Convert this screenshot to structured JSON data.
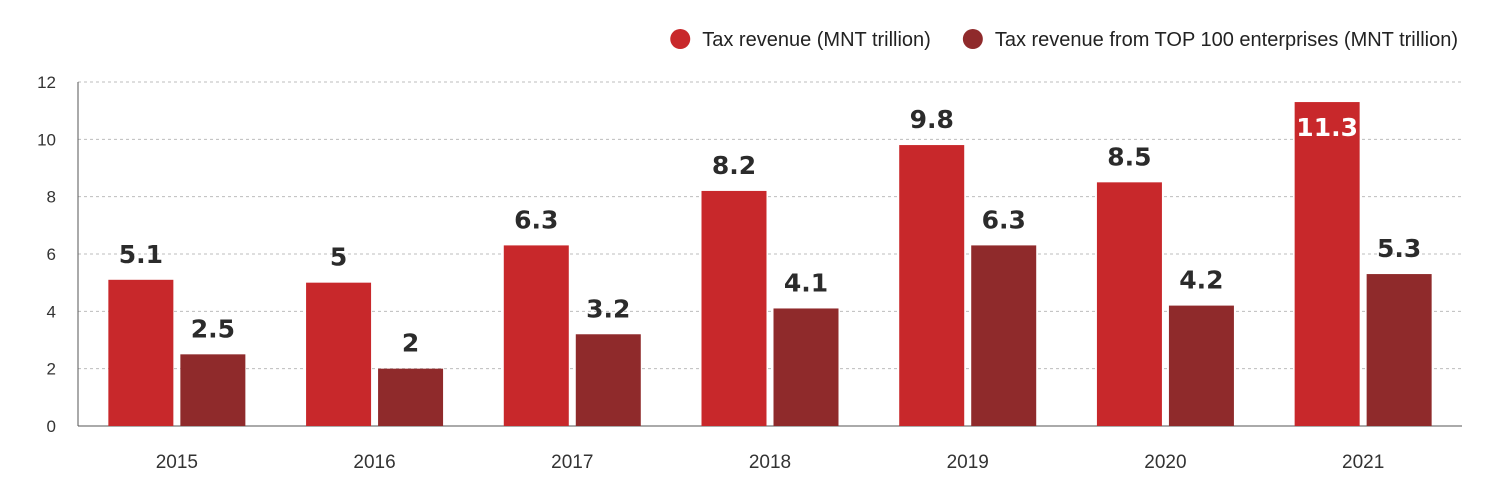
{
  "chart_data": {
    "type": "bar",
    "categories": [
      "2015",
      "2016",
      "2017",
      "2018",
      "2019",
      "2020",
      "2021"
    ],
    "series": [
      {
        "name": "Tax revenue (MNT trillion)",
        "color": "#c8282b",
        "values": [
          5.1,
          5,
          6.3,
          8.2,
          9.8,
          8.5,
          11.3
        ],
        "labels": [
          "5.1",
          "5",
          "6.3",
          "8.2",
          "9.8",
          "8.5",
          "11.3"
        ]
      },
      {
        "name": "Tax revenue from TOP 100 enterprises (MNT trillion)",
        "color": "#8f2a2b",
        "values": [
          2.5,
          2,
          3.2,
          4.1,
          6.3,
          4.2,
          5.3
        ],
        "labels": [
          "2.5",
          "2",
          "3.2",
          "4.1",
          "6.3",
          "4.2",
          "5.3"
        ]
      }
    ],
    "yticks": [
      "0",
      "2",
      "4",
      "6",
      "8",
      "10",
      "12"
    ],
    "ylim": [
      0,
      12
    ],
    "grid": true,
    "legend_position": "top-right",
    "label_inside_bar": [
      [
        6,
        0
      ]
    ]
  }
}
